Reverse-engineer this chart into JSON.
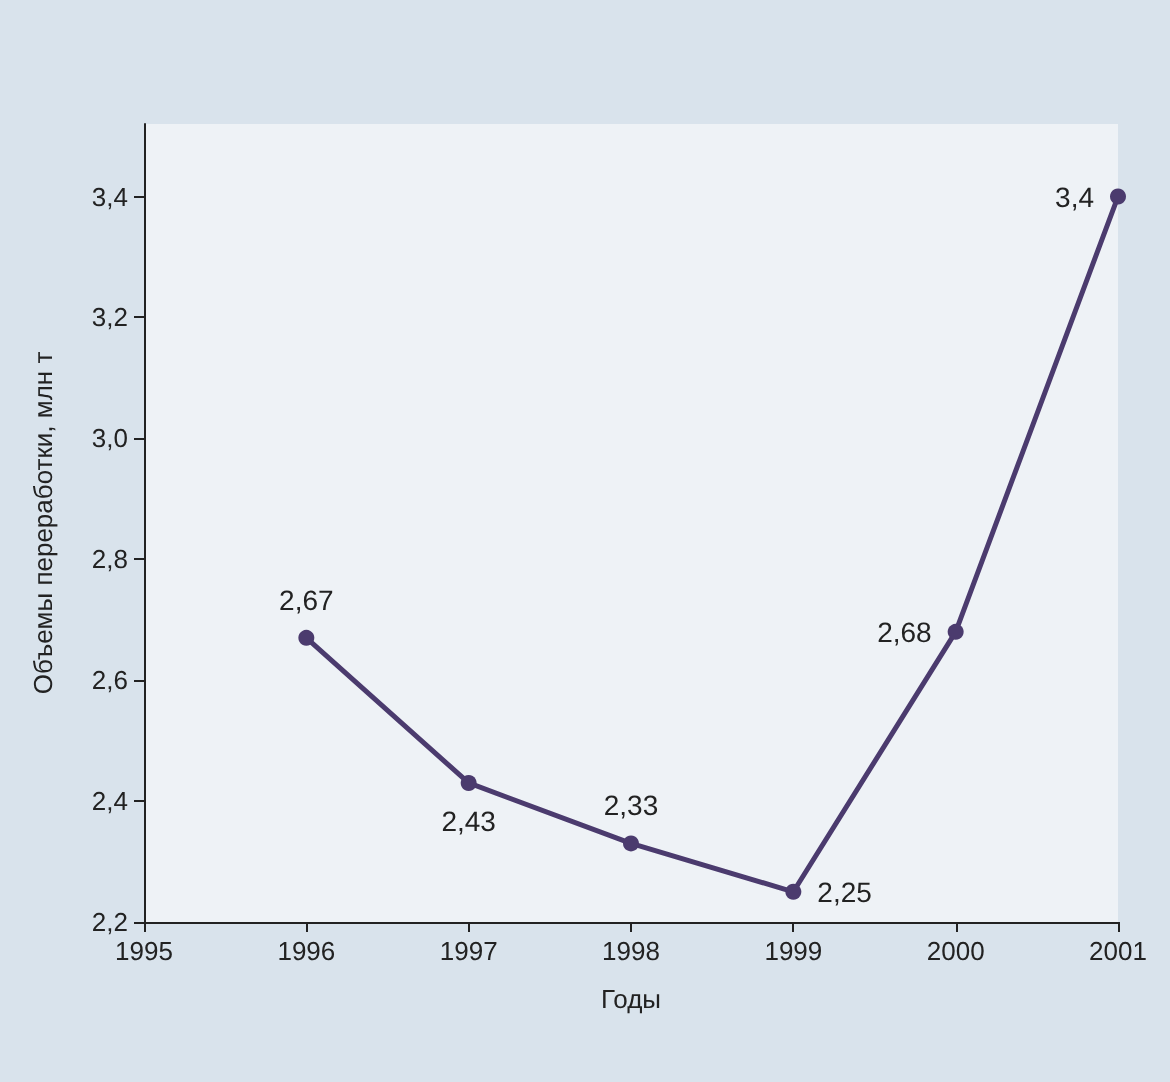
{
  "chart_data": {
    "type": "line",
    "xlabel": "Годы",
    "ylabel": "Объемы переработки, млн т",
    "x": [
      1996,
      1997,
      1998,
      1999,
      2000,
      2001
    ],
    "series": [
      {
        "color": "#4b3b6e",
        "values": [
          2.67,
          2.43,
          2.33,
          2.25,
          2.68,
          3.4
        ],
        "value_labels": [
          "2,67",
          "2,43",
          "2,33",
          "2,25",
          "2,68",
          "3,4"
        ]
      }
    ],
    "xlim": [
      1995,
      2001
    ],
    "xticks": [
      1995,
      1996,
      1997,
      1998,
      1999,
      2000,
      2001
    ],
    "ylim": [
      2.2,
      3.52
    ],
    "yticks": [
      {
        "value": 2.2,
        "label": "2,2"
      },
      {
        "value": 2.4,
        "label": "2,4"
      },
      {
        "value": 2.6,
        "label": "2,6"
      },
      {
        "value": 2.8,
        "label": "2,8"
      },
      {
        "value": 3.0,
        "label": "3,0"
      },
      {
        "value": 3.2,
        "label": "3,2"
      },
      {
        "value": 3.4,
        "label": "3,4"
      }
    ],
    "marker": "circle",
    "line_style": "solid",
    "grid": false
  }
}
